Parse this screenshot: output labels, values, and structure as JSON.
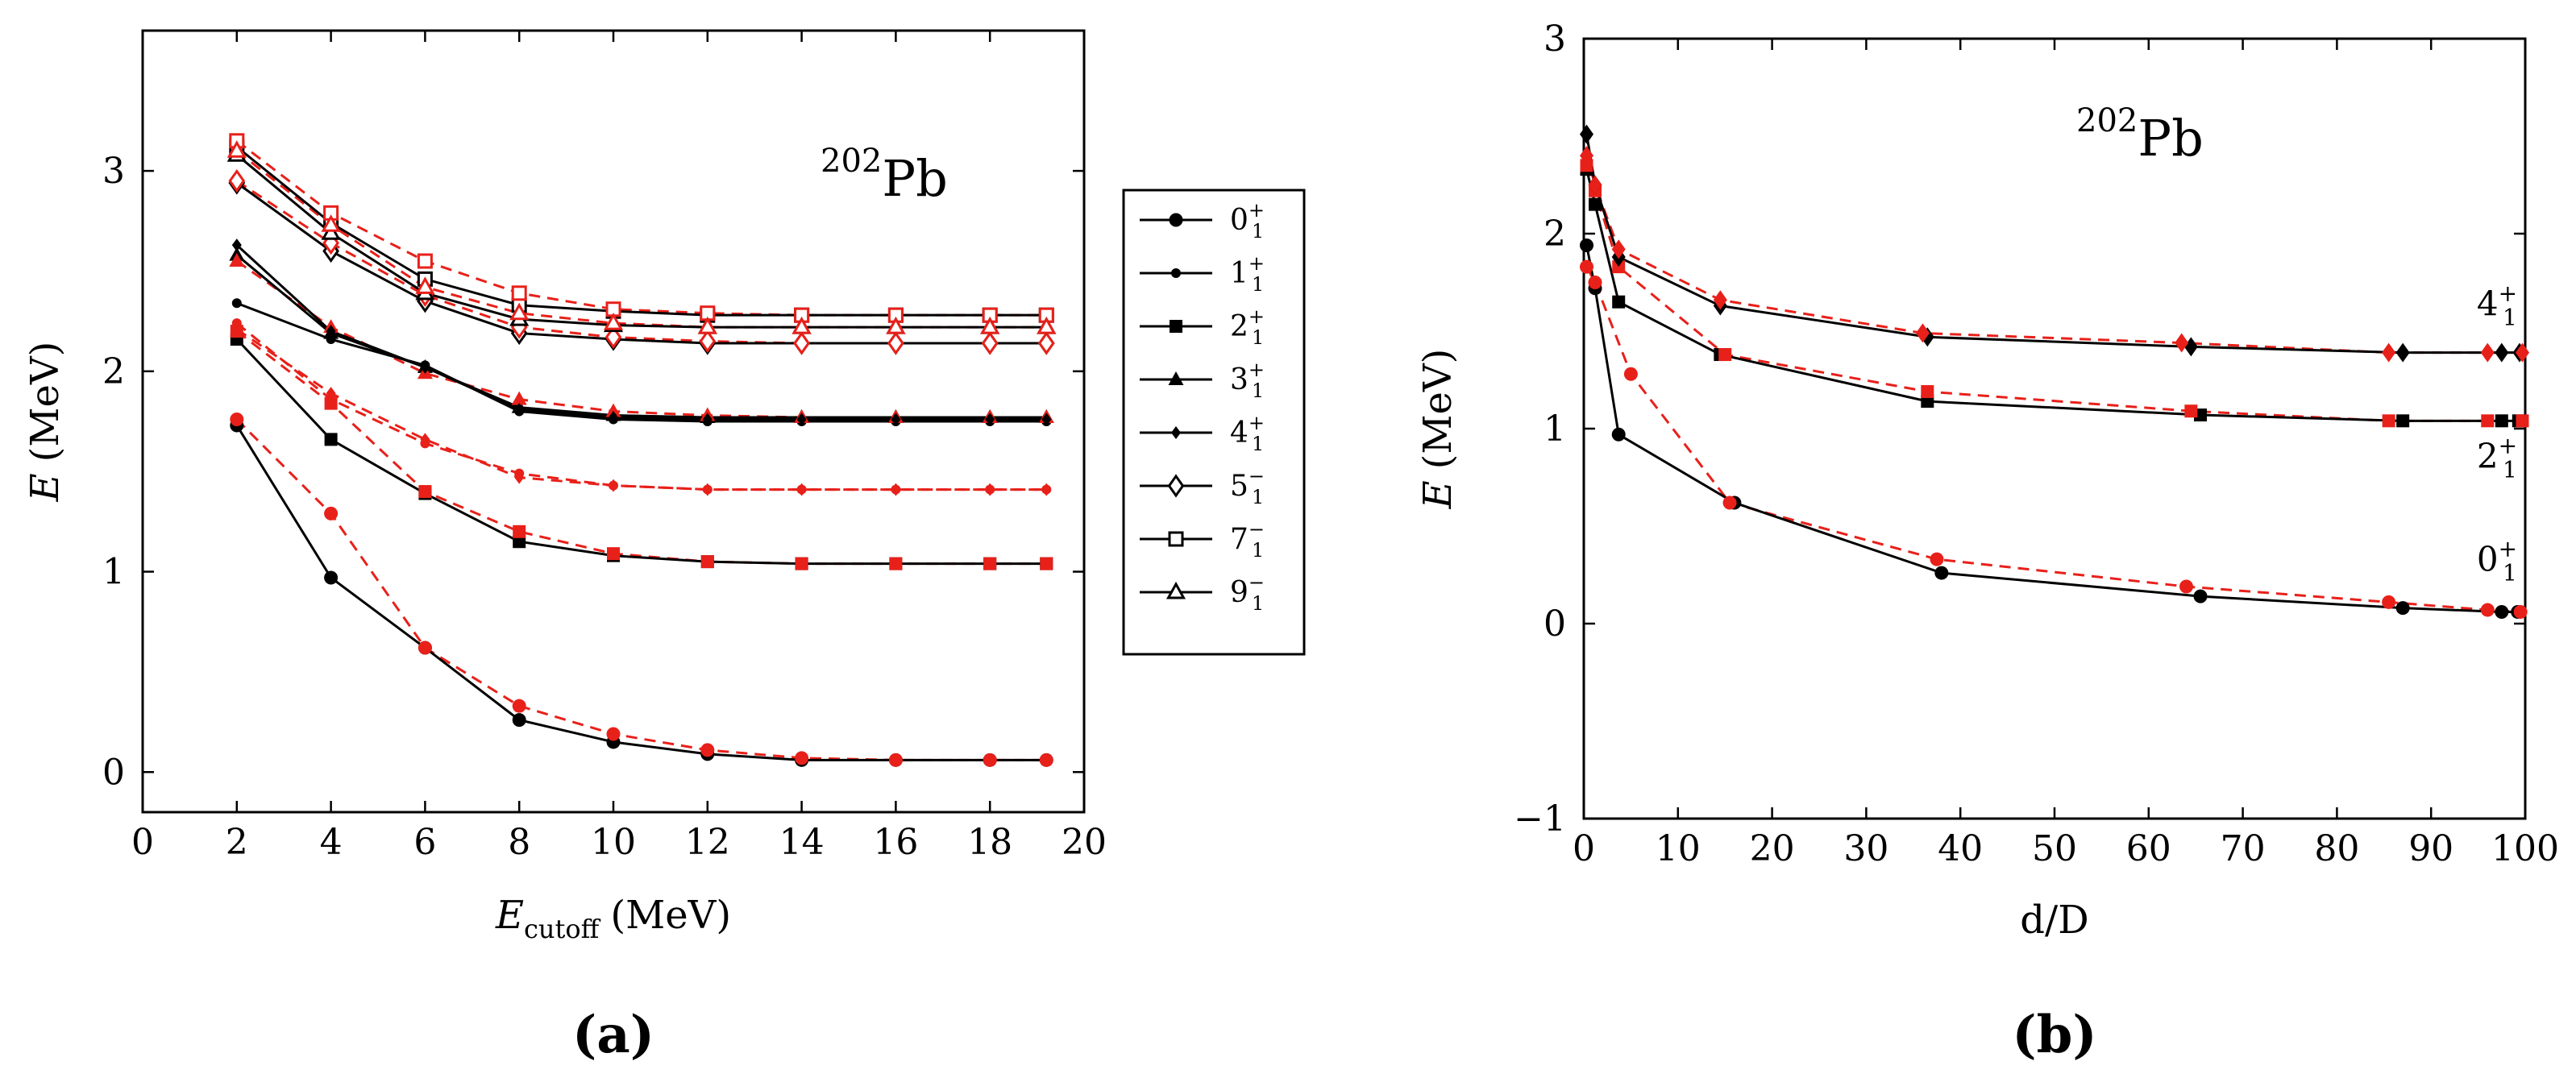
{
  "colors": {
    "black": "#000000",
    "red": "#e8201a",
    "background": "#ffffff"
  },
  "chart_data": [
    {
      "type": "line",
      "id": "a",
      "panel_label": "(a)",
      "annotation": {
        "super": "202",
        "main": "Pb"
      },
      "xlabel": {
        "main": "E",
        "sub": "cutoff",
        "unit": "(MeV)"
      },
      "ylabel": {
        "main": "E",
        "unit": "(MeV)"
      },
      "xlim": [
        0,
        20
      ],
      "ylim": [
        -0.2,
        3.7
      ],
      "xticks": [
        0,
        2,
        4,
        6,
        8,
        10,
        12,
        14,
        16,
        18,
        20
      ],
      "yticks": [
        0,
        1,
        2,
        3
      ],
      "grid": false,
      "legend_position": "right-outside",
      "x": [
        2,
        4,
        6,
        8,
        10,
        12,
        14,
        16,
        18,
        19.2
      ],
      "series": [
        {
          "name": "0",
          "sup": "+",
          "marker": "circle",
          "black": [
            1.73,
            0.97,
            0.62,
            0.26,
            0.15,
            0.09,
            0.06,
            0.06,
            0.06,
            0.06
          ],
          "red": [
            1.76,
            1.29,
            0.62,
            0.33,
            0.19,
            0.11,
            0.07,
            0.06,
            0.06,
            0.06
          ]
        },
        {
          "name": "1",
          "sup": "+",
          "marker": "dot",
          "black": [
            2.34,
            2.16,
            2.03,
            1.8,
            1.76,
            1.75,
            1.75,
            1.75,
            1.75,
            1.75
          ],
          "red": [
            2.24,
            1.86,
            1.64,
            1.49,
            1.43,
            1.41,
            1.41,
            1.41,
            1.41,
            1.41
          ]
        },
        {
          "name": "2",
          "sup": "+",
          "marker": "square",
          "black": [
            2.16,
            1.66,
            1.39,
            1.15,
            1.08,
            1.05,
            1.04,
            1.04,
            1.04,
            1.04
          ],
          "red": [
            2.2,
            1.84,
            1.4,
            1.2,
            1.09,
            1.05,
            1.04,
            1.04,
            1.04,
            1.04
          ]
        },
        {
          "name": "3",
          "sup": "+",
          "marker": "triangle",
          "black": [
            2.58,
            2.19,
            2.02,
            1.82,
            1.78,
            1.77,
            1.77,
            1.77,
            1.77,
            1.77
          ],
          "red": [
            2.55,
            2.22,
            1.99,
            1.86,
            1.8,
            1.78,
            1.77,
            1.77,
            1.77,
            1.77
          ]
        },
        {
          "name": "4",
          "sup": "+",
          "marker": "diamond-small",
          "black": [
            2.63,
            2.2,
            2.02,
            1.81,
            1.77,
            1.76,
            1.76,
            1.76,
            1.76,
            1.76
          ],
          "red": [
            2.21,
            1.89,
            1.66,
            1.47,
            1.43,
            1.41,
            1.41,
            1.41,
            1.41,
            1.41
          ]
        },
        {
          "name": "5",
          "sup": "−",
          "marker": "diamond-open",
          "black": [
            2.94,
            2.6,
            2.35,
            2.19,
            2.16,
            2.14,
            2.14,
            2.14,
            2.14,
            2.14
          ],
          "red": [
            2.95,
            2.64,
            2.38,
            2.22,
            2.17,
            2.15,
            2.14,
            2.14,
            2.14,
            2.14
          ]
        },
        {
          "name": "7",
          "sup": "−",
          "marker": "square-open",
          "black": [
            3.12,
            2.74,
            2.46,
            2.33,
            2.3,
            2.28,
            2.28,
            2.28,
            2.28,
            2.28
          ],
          "red": [
            3.15,
            2.79,
            2.55,
            2.39,
            2.31,
            2.29,
            2.28,
            2.28,
            2.28,
            2.28
          ]
        },
        {
          "name": "9",
          "sup": "−",
          "marker": "triangle-open",
          "black": [
            3.08,
            2.69,
            2.39,
            2.26,
            2.23,
            2.22,
            2.22,
            2.22,
            2.22,
            2.22
          ],
          "red": [
            3.1,
            2.73,
            2.42,
            2.29,
            2.24,
            2.22,
            2.22,
            2.22,
            2.22,
            2.22
          ]
        }
      ]
    },
    {
      "type": "line",
      "id": "b",
      "panel_label": "(b)",
      "annotation": {
        "super": "202",
        "main": "Pb"
      },
      "xlabel": {
        "main": "d/D"
      },
      "ylabel": {
        "main": "E",
        "unit": "(MeV)"
      },
      "xlim": [
        0,
        100
      ],
      "ylim": [
        -1,
        3
      ],
      "xticks": [
        0,
        10,
        20,
        30,
        40,
        50,
        60,
        70,
        80,
        90,
        100
      ],
      "yticks": [
        -1,
        0,
        1,
        2,
        3
      ],
      "grid": false,
      "series": [
        {
          "name": "0",
          "sup": "+",
          "marker": "circle",
          "label_at": {
            "x": 97,
            "y": 0.27
          },
          "black": {
            "x": [
              0.3,
              1.2,
              3.7,
              16,
              38,
              65.5,
              87,
              97.5,
              99.2
            ],
            "y": [
              1.94,
              1.72,
              0.97,
              0.62,
              0.26,
              0.14,
              0.08,
              0.06,
              0.06
            ]
          },
          "red": {
            "x": [
              0.3,
              1.2,
              5,
              15.5,
              37.5,
              64,
              85.5,
              96,
              99.5
            ],
            "y": [
              1.83,
              1.75,
              1.28,
              0.62,
              0.33,
              0.19,
              0.11,
              0.07,
              0.06
            ]
          }
        },
        {
          "name": "2",
          "sup": "+",
          "marker": "square",
          "label_at": {
            "x": 97,
            "y": 0.8
          },
          "black": {
            "x": [
              0.3,
              1.2,
              3.7,
              14.5,
              36.5,
              65.5,
              87,
              97.5,
              99.3
            ],
            "y": [
              2.33,
              2.15,
              1.65,
              1.38,
              1.14,
              1.07,
              1.04,
              1.04,
              1.04
            ]
          },
          "red": {
            "x": [
              0.3,
              1.2,
              3.7,
              15,
              36.5,
              64.5,
              85.5,
              96,
              99.7
            ],
            "y": [
              2.35,
              2.22,
              1.83,
              1.38,
              1.19,
              1.09,
              1.04,
              1.04,
              1.04
            ]
          }
        },
        {
          "name": "4",
          "sup": "+",
          "marker": "diamond",
          "label_at": {
            "x": 97,
            "y": 1.58
          },
          "black": {
            "x": [
              0.3,
              1.2,
              3.7,
              14.5,
              36.5,
              64.5,
              87,
              97.5,
              99.4
            ],
            "y": [
              2.51,
              2.25,
              1.88,
              1.63,
              1.47,
              1.42,
              1.39,
              1.39,
              1.39
            ]
          },
          "red": {
            "x": [
              0.3,
              1.2,
              3.7,
              14.5,
              36,
              63.5,
              85.5,
              96,
              99.7
            ],
            "y": [
              2.4,
              2.25,
              1.92,
              1.66,
              1.49,
              1.44,
              1.39,
              1.39,
              1.39
            ]
          }
        }
      ]
    }
  ]
}
